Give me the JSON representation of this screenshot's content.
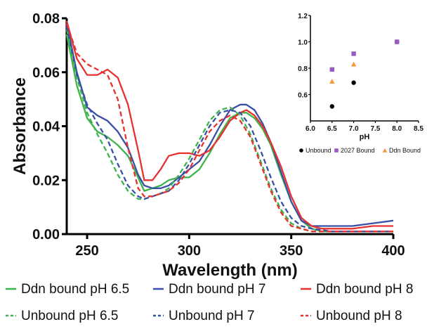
{
  "chart_data": [
    {
      "type": "line",
      "xlabel": "Wavelength (nm)",
      "ylabel": "Absorbance",
      "xlim": [
        240,
        400
      ],
      "ylim": [
        0,
        0.08
      ],
      "x_ticks": [
        250,
        300,
        350,
        400
      ],
      "y_ticks": [
        0.0,
        0.02,
        0.04,
        0.06,
        0.08
      ],
      "y_tick_labels": [
        "0.00",
        "0.02",
        "0.04",
        "0.06",
        "0.08"
      ],
      "legend_position": "bottom",
      "series": [
        {
          "name": "Ddn bound pH 6.5",
          "style": "solid",
          "color": "#3db34a",
          "x": [
            240,
            245,
            250,
            255,
            260,
            265,
            270,
            275,
            278,
            282,
            286,
            290,
            295,
            300,
            305,
            310,
            315,
            320,
            325,
            328,
            332,
            336,
            340,
            345,
            350,
            355,
            360,
            365,
            370,
            380,
            390,
            400
          ],
          "y": [
            0.074,
            0.055,
            0.043,
            0.038,
            0.036,
            0.033,
            0.029,
            0.021,
            0.016,
            0.017,
            0.018,
            0.02,
            0.021,
            0.021,
            0.024,
            0.03,
            0.037,
            0.043,
            0.045,
            0.045,
            0.043,
            0.039,
            0.033,
            0.022,
            0.012,
            0.005,
            0.002,
            0.001,
            0.001,
            0.001,
            0.001,
            0.001
          ]
        },
        {
          "name": "Ddn bound pH 7",
          "style": "solid",
          "color": "#3a4fa8",
          "x": [
            240,
            245,
            250,
            255,
            260,
            265,
            270,
            275,
            278,
            282,
            286,
            290,
            295,
            300,
            305,
            310,
            315,
            320,
            325,
            328,
            332,
            336,
            340,
            345,
            350,
            355,
            360,
            365,
            370,
            380,
            390,
            400
          ],
          "y": [
            0.078,
            0.06,
            0.047,
            0.044,
            0.042,
            0.038,
            0.032,
            0.022,
            0.018,
            0.017,
            0.017,
            0.018,
            0.021,
            0.024,
            0.027,
            0.033,
            0.04,
            0.046,
            0.048,
            0.048,
            0.046,
            0.041,
            0.034,
            0.023,
            0.012,
            0.005,
            0.003,
            0.003,
            0.003,
            0.003,
            0.004,
            0.005
          ]
        },
        {
          "name": "Ddn bound pH 8",
          "style": "solid",
          "color": "#e8312f",
          "x": [
            240,
            245,
            250,
            255,
            260,
            265,
            270,
            275,
            278,
            282,
            286,
            290,
            295,
            300,
            305,
            310,
            315,
            320,
            325,
            328,
            332,
            336,
            340,
            345,
            350,
            355,
            360,
            365,
            370,
            380,
            390,
            400
          ],
          "y": [
            0.079,
            0.065,
            0.059,
            0.059,
            0.061,
            0.058,
            0.048,
            0.031,
            0.02,
            0.02,
            0.024,
            0.029,
            0.03,
            0.03,
            0.029,
            0.031,
            0.036,
            0.042,
            0.045,
            0.046,
            0.044,
            0.04,
            0.034,
            0.025,
            0.014,
            0.006,
            0.003,
            0.002,
            0.002,
            0.002,
            0.003,
            0.003
          ]
        },
        {
          "name": "Unbound pH 6.5",
          "style": "dashed",
          "color": "#3db34a",
          "x": [
            240,
            245,
            250,
            255,
            260,
            265,
            270,
            275,
            278,
            282,
            286,
            290,
            295,
            300,
            305,
            310,
            315,
            320,
            325,
            330,
            335,
            340,
            345,
            350,
            355,
            360,
            370,
            380,
            390,
            400
          ],
          "y": [
            0.076,
            0.058,
            0.045,
            0.037,
            0.03,
            0.022,
            0.016,
            0.013,
            0.013,
            0.014,
            0.015,
            0.017,
            0.022,
            0.028,
            0.035,
            0.042,
            0.046,
            0.047,
            0.044,
            0.037,
            0.027,
            0.017,
            0.009,
            0.004,
            0.002,
            0.001,
            0.001,
            0.001,
            0.001,
            0.001
          ]
        },
        {
          "name": "Unbound pH 7",
          "style": "dashed",
          "color": "#3a4fa8",
          "x": [
            240,
            245,
            250,
            255,
            260,
            265,
            270,
            275,
            278,
            282,
            286,
            290,
            295,
            300,
            305,
            310,
            315,
            320,
            325,
            330,
            335,
            340,
            345,
            350,
            355,
            360,
            370,
            380,
            390,
            400
          ],
          "y": [
            0.077,
            0.059,
            0.048,
            0.041,
            0.035,
            0.026,
            0.018,
            0.014,
            0.013,
            0.014,
            0.015,
            0.016,
            0.02,
            0.026,
            0.033,
            0.04,
            0.045,
            0.046,
            0.045,
            0.04,
            0.031,
            0.021,
            0.012,
            0.006,
            0.003,
            0.002,
            0.001,
            0.001,
            0.001,
            0.001
          ]
        },
        {
          "name": "Unbound pH 8",
          "style": "dashed",
          "color": "#e8312f",
          "x": [
            240,
            245,
            250,
            255,
            260,
            265,
            270,
            275,
            278,
            282,
            286,
            290,
            295,
            300,
            305,
            310,
            315,
            320,
            325,
            330,
            335,
            340,
            345,
            350,
            355,
            360,
            370,
            380,
            390,
            400
          ],
          "y": [
            0.078,
            0.067,
            0.063,
            0.061,
            0.059,
            0.05,
            0.032,
            0.017,
            0.014,
            0.014,
            0.015,
            0.016,
            0.019,
            0.024,
            0.031,
            0.038,
            0.042,
            0.044,
            0.042,
            0.036,
            0.026,
            0.016,
            0.008,
            0.003,
            0.002,
            0.001,
            0.001,
            0.001,
            0.001,
            0.001
          ]
        }
      ]
    },
    {
      "type": "scatter",
      "xlabel": "pH",
      "ylabel": "",
      "xlim": [
        6.0,
        8.5
      ],
      "ylim": [
        0.4,
        1.2
      ],
      "x_ticks": [
        6.0,
        6.5,
        7.0,
        7.5,
        8.0,
        8.5
      ],
      "x_tick_labels": [
        "6.0",
        "6.5",
        "7.0",
        "7.5",
        "8.0",
        "8.5"
      ],
      "y_ticks": [
        0.6,
        0.8,
        1.0,
        1.2
      ],
      "y_tick_labels": [
        "0.6",
        "0.8",
        "1.0",
        "1.2"
      ],
      "legend_position": "bottom",
      "series": [
        {
          "name": "Unbound",
          "marker": "circle",
          "color": "#000000",
          "x": [
            6.5,
            7.0,
            8.0
          ],
          "y": [
            0.51,
            0.69,
            1.0
          ]
        },
        {
          "name": "2027 Bound",
          "marker": "square",
          "color": "#9b59c2",
          "x": [
            6.5,
            7.0,
            8.0
          ],
          "y": [
            0.79,
            0.91,
            1.0
          ]
        },
        {
          "name": "Ddn Bound",
          "marker": "triangle",
          "color": "#f39a3d",
          "x": [
            6.5,
            7.0
          ],
          "y": [
            0.7,
            0.83
          ]
        }
      ]
    }
  ]
}
